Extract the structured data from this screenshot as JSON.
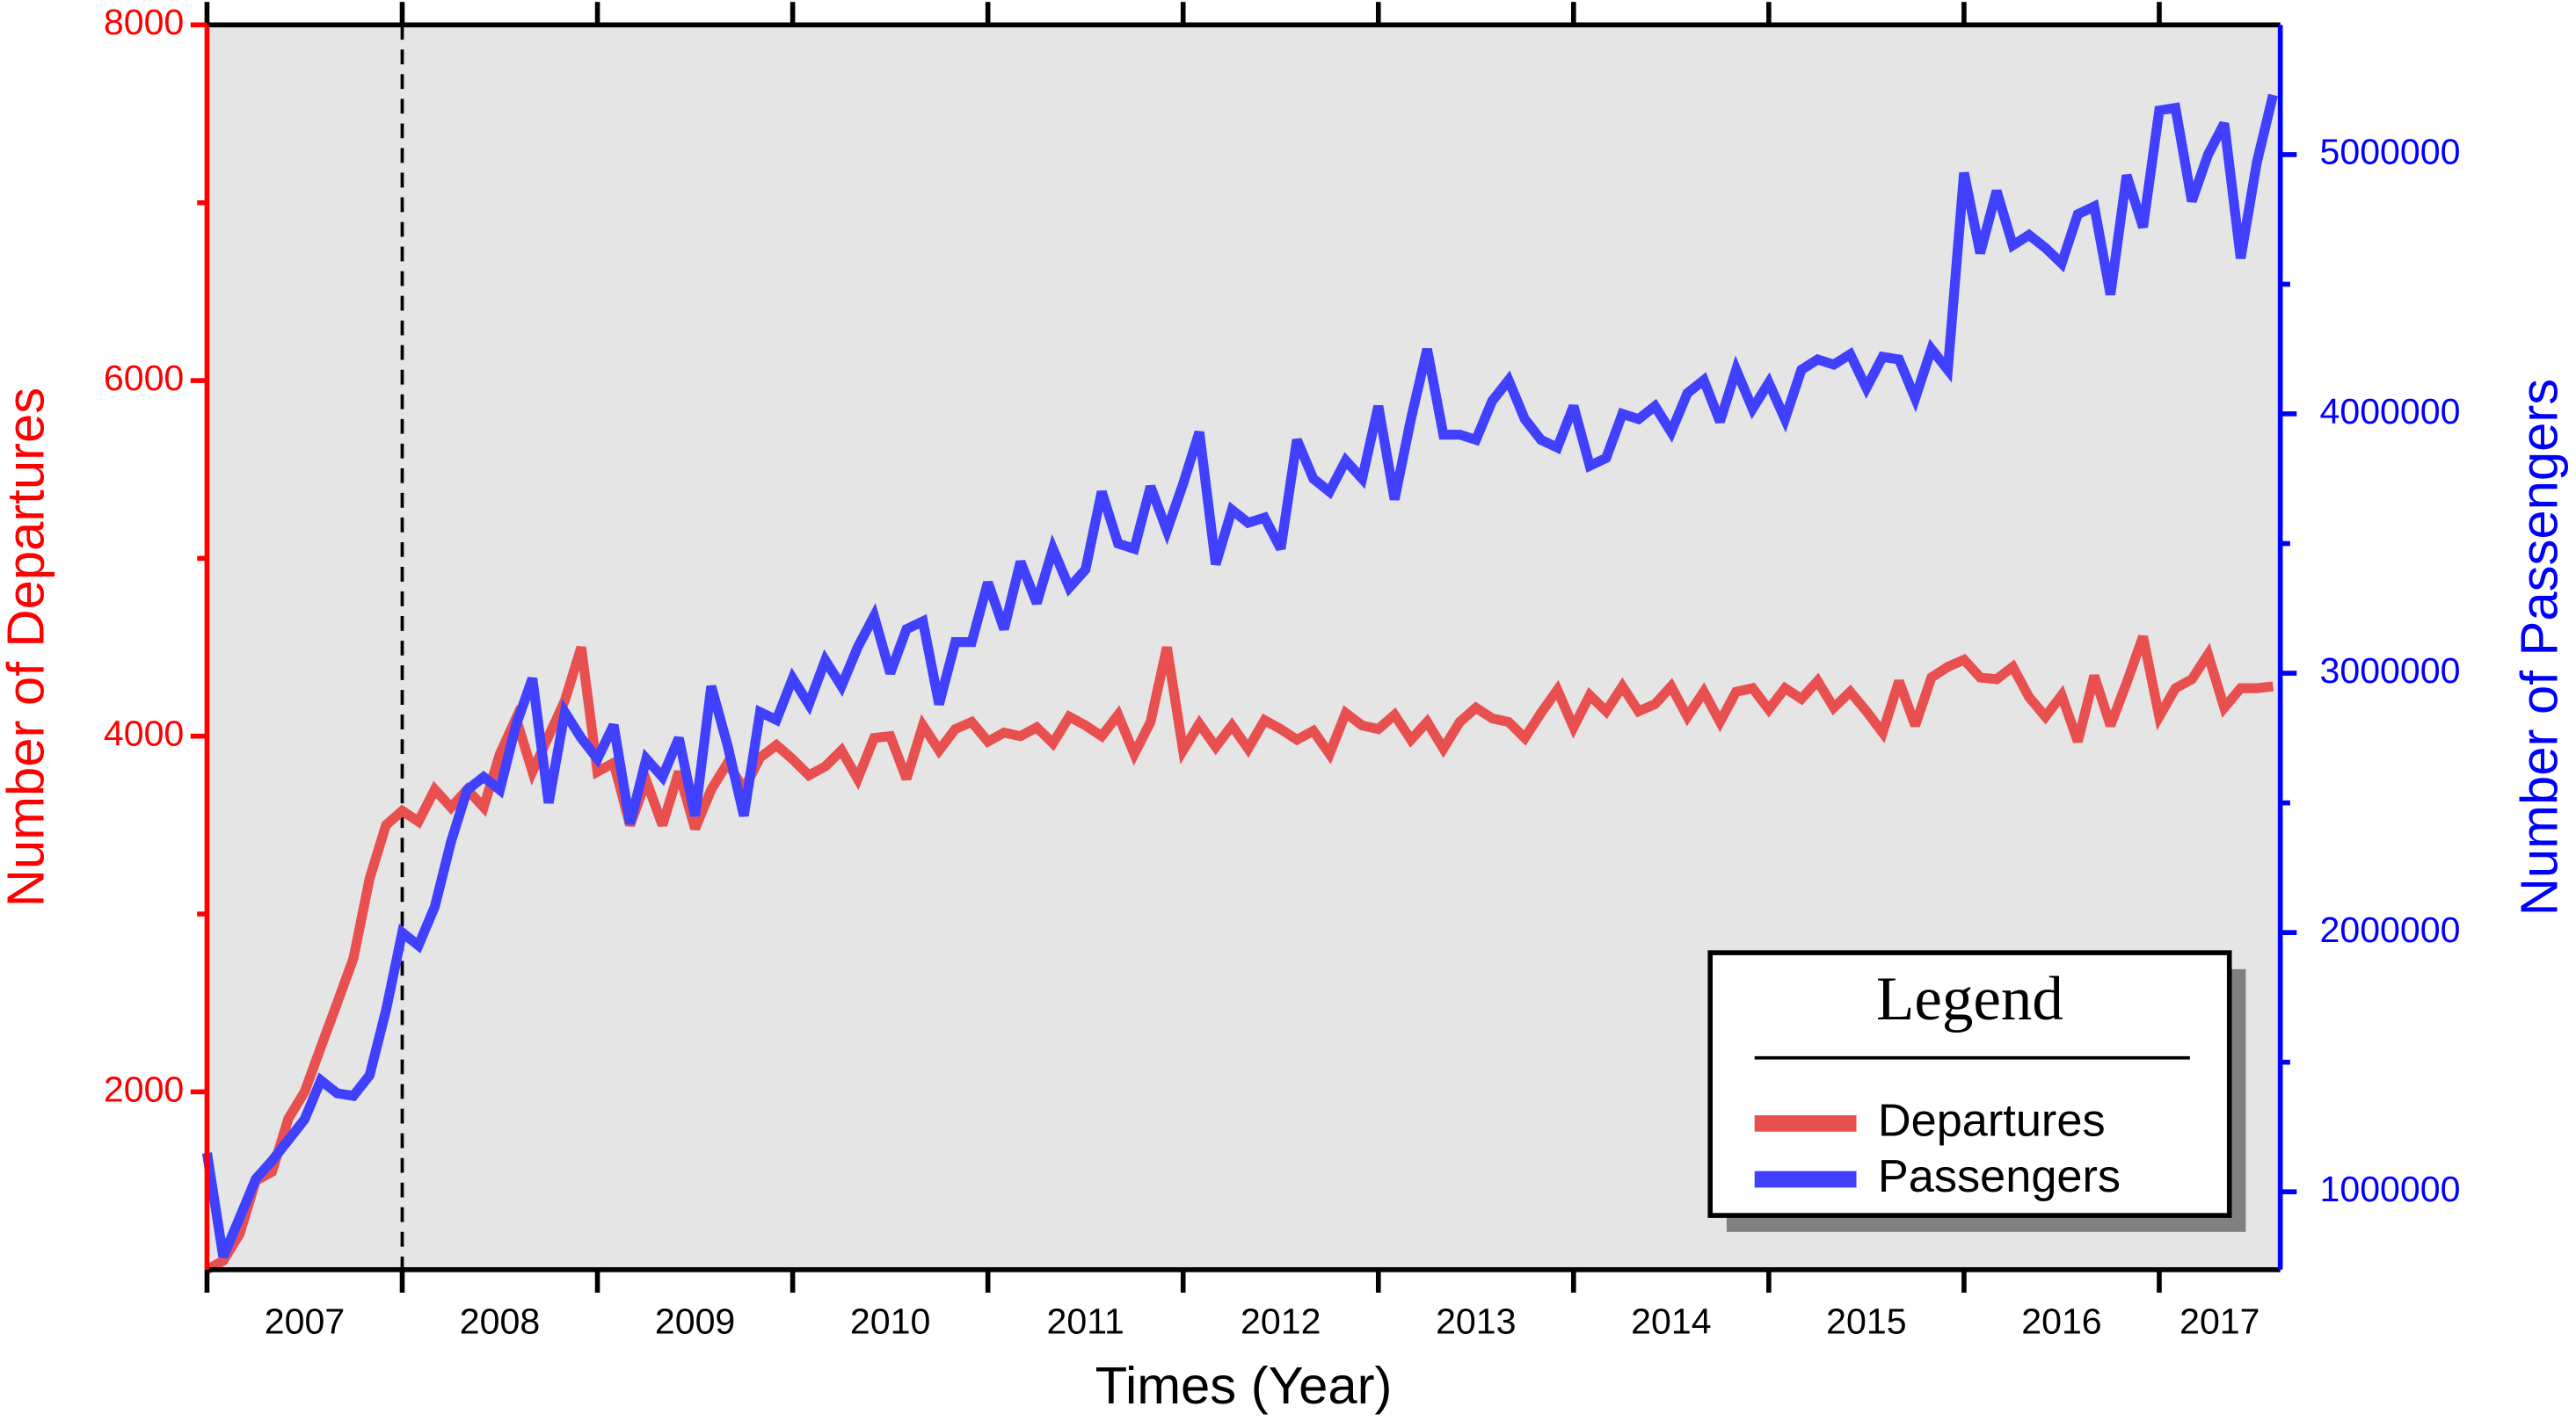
{
  "chart_data": {
    "type": "line",
    "x_label": "Times (Year)",
    "y_label": "Number of Departures",
    "y2_label": "Number of Passengers",
    "xlim": [
      2007,
      2017.62
    ],
    "xticks": [
      2007,
      2008,
      2009,
      2010,
      2011,
      2012,
      2013,
      2014,
      2015,
      2016,
      2017
    ],
    "ylim": [
      1000,
      8000
    ],
    "yticks": [
      2000,
      4000,
      6000,
      8000
    ],
    "yminorticks": [
      3000,
      5000,
      7000
    ],
    "y2lim": [
      700000,
      5500000
    ],
    "y2ticks": [
      1000000,
      2000000,
      3000000,
      4000000,
      5000000
    ],
    "y2minorticks": [
      1500000,
      2500000,
      3500000,
      4500000
    ],
    "vlines": [
      2008
    ],
    "legend": {
      "title": "Legend",
      "position": "lower right"
    },
    "background": "#e5e5e5",
    "x": [
      2007,
      2007.083,
      2007.167,
      2007.25,
      2007.333,
      2007.417,
      2007.5,
      2007.583,
      2007.667,
      2007.75,
      2007.833,
      2007.917,
      2008,
      2008.083,
      2008.167,
      2008.25,
      2008.333,
      2008.417,
      2008.5,
      2008.583,
      2008.667,
      2008.75,
      2008.833,
      2008.917,
      2009,
      2009.083,
      2009.167,
      2009.25,
      2009.333,
      2009.417,
      2009.5,
      2009.583,
      2009.667,
      2009.75,
      2009.833,
      2009.917,
      2010,
      2010.083,
      2010.167,
      2010.25,
      2010.333,
      2010.417,
      2010.5,
      2010.583,
      2010.667,
      2010.75,
      2010.833,
      2010.917,
      2011,
      2011.083,
      2011.167,
      2011.25,
      2011.333,
      2011.417,
      2011.5,
      2011.583,
      2011.667,
      2011.75,
      2011.833,
      2011.917,
      2012,
      2012.083,
      2012.167,
      2012.25,
      2012.333,
      2012.417,
      2012.5,
      2012.583,
      2012.667,
      2012.75,
      2012.833,
      2012.917,
      2013,
      2013.083,
      2013.167,
      2013.25,
      2013.333,
      2013.417,
      2013.5,
      2013.583,
      2013.667,
      2013.75,
      2013.833,
      2013.917,
      2014,
      2014.083,
      2014.167,
      2014.25,
      2014.333,
      2014.417,
      2014.5,
      2014.583,
      2014.667,
      2014.75,
      2014.833,
      2014.917,
      2015,
      2015.083,
      2015.167,
      2015.25,
      2015.333,
      2015.417,
      2015.5,
      2015.583,
      2015.667,
      2015.75,
      2015.833,
      2015.917,
      2016,
      2016.083,
      2016.167,
      2016.25,
      2016.333,
      2016.417,
      2016.5,
      2016.583,
      2016.667,
      2016.75,
      2016.833,
      2016.917,
      2017,
      2017.083,
      2017.167,
      2017.25,
      2017.333,
      2017.417,
      2017.5,
      2017.583
    ],
    "series": [
      {
        "name": "Departures",
        "color": "#e85050",
        "axis": "y",
        "values": [
          1000,
          1050,
          1200,
          1500,
          1550,
          1850,
          2000,
          2250,
          2500,
          2750,
          3200,
          3500,
          3580,
          3520,
          3700,
          3600,
          3700,
          3600,
          3900,
          4100,
          3800,
          4000,
          4200,
          4500,
          3800,
          3850,
          3500,
          3750,
          3500,
          3800,
          3480,
          3700,
          3850,
          3700,
          3880,
          3950,
          3870,
          3780,
          3830,
          3920,
          3760,
          3990,
          4000,
          3760,
          4060,
          3920,
          4040,
          4080,
          3970,
          4020,
          4000,
          4050,
          3960,
          4110,
          4060,
          4000,
          4120,
          3900,
          4080,
          4500,
          3920,
          4070,
          3940,
          4060,
          3930,
          4090,
          4040,
          3980,
          4030,
          3900,
          4130,
          4060,
          4040,
          4120,
          3980,
          4080,
          3930,
          4080,
          4160,
          4100,
          4080,
          3990,
          4130,
          4260,
          4050,
          4230,
          4140,
          4280,
          4140,
          4180,
          4280,
          4110,
          4250,
          4080,
          4250,
          4270,
          4150,
          4270,
          4210,
          4310,
          4160,
          4250,
          4140,
          4020,
          4310,
          4060,
          4330,
          4390,
          4430,
          4330,
          4320,
          4390,
          4220,
          4110,
          4230,
          3970,
          4340,
          4060,
          4300,
          4560,
          4110,
          4270,
          4320,
          4460,
          4160,
          4270,
          4270,
          4280
        ]
      },
      {
        "name": "Passengers",
        "color": "#4040ff",
        "axis": "y2",
        "values": [
          1150000,
          750000,
          900000,
          1050000,
          1120000,
          1200000,
          1280000,
          1430000,
          1380000,
          1370000,
          1450000,
          1700000,
          2000000,
          1950000,
          2100000,
          2350000,
          2550000,
          2600000,
          2550000,
          2800000,
          2980000,
          2500000,
          2850000,
          2750000,
          2670000,
          2800000,
          2420000,
          2670000,
          2600000,
          2750000,
          2450000,
          2950000,
          2720000,
          2450000,
          2850000,
          2820000,
          2980000,
          2880000,
          3050000,
          2950000,
          3100000,
          3220000,
          3000000,
          3170000,
          3200000,
          2880000,
          3120000,
          3120000,
          3350000,
          3170000,
          3430000,
          3270000,
          3480000,
          3330000,
          3400000,
          3700000,
          3500000,
          3480000,
          3720000,
          3550000,
          3730000,
          3930000,
          3420000,
          3630000,
          3580000,
          3600000,
          3480000,
          3900000,
          3750000,
          3700000,
          3820000,
          3750000,
          4030000,
          3670000,
          3980000,
          4250000,
          3920000,
          3920000,
          3900000,
          4050000,
          4130000,
          3980000,
          3900000,
          3870000,
          4030000,
          3800000,
          3830000,
          4000000,
          3980000,
          4030000,
          3930000,
          4080000,
          4130000,
          3970000,
          4170000,
          4020000,
          4120000,
          3980000,
          4170000,
          4210000,
          4190000,
          4230000,
          4100000,
          4220000,
          4210000,
          4060000,
          4250000,
          4170000,
          4930000,
          4620000,
          4860000,
          4650000,
          4690000,
          4640000,
          4580000,
          4770000,
          4800000,
          4460000,
          4920000,
          4720000,
          5170000,
          5180000,
          4820000,
          5000000,
          5120000,
          4600000,
          4970000,
          5230000
        ]
      }
    ]
  }
}
